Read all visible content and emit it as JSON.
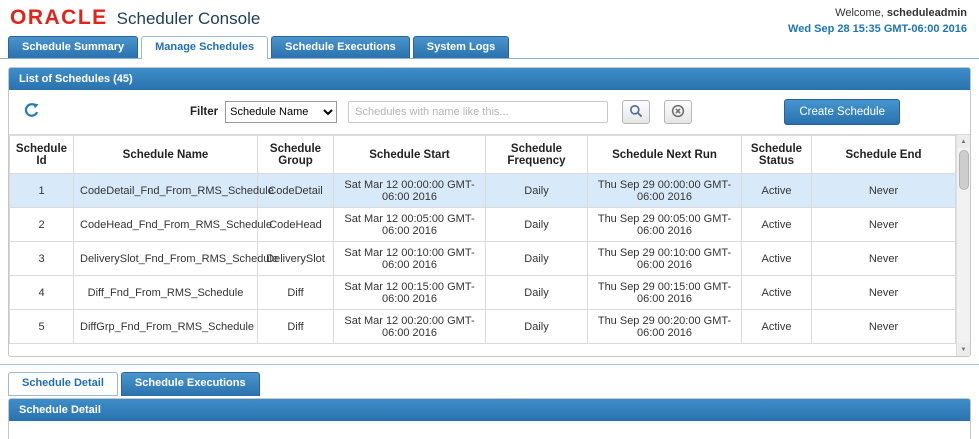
{
  "header": {
    "logo": "ORACLE",
    "title": "Scheduler Console",
    "welcome_prefix": "Welcome, ",
    "username": "scheduleadmin",
    "datetime": "Wed Sep 28 15:35 GMT-06:00 2016"
  },
  "tabs": [
    {
      "label": "Schedule Summary",
      "active": false
    },
    {
      "label": "Manage Schedules",
      "active": true
    },
    {
      "label": "Schedule Executions",
      "active": false
    },
    {
      "label": "System Logs",
      "active": false
    }
  ],
  "list_panel": {
    "title": "List of Schedules (45)",
    "filter_label": "Filter",
    "filter_dropdown_value": "Schedule Name",
    "search_placeholder": "Schedules with name like this...",
    "create_button": "Create Schedule"
  },
  "table": {
    "columns": [
      "Schedule Id",
      "Schedule Name",
      "Schedule Group",
      "Schedule Start",
      "Schedule Frequency",
      "Schedule Next Run",
      "Schedule Status",
      "Schedule End"
    ],
    "selected_row_index": 0,
    "rows": [
      [
        "1",
        "CodeDetail_Fnd_From_RMS_Schedule",
        "CodeDetail",
        "Sat Mar 12 00:00:00 GMT-06:00 2016",
        "Daily",
        "Thu Sep 29 00:00:00 GMT-06:00 2016",
        "Active",
        "Never"
      ],
      [
        "2",
        "CodeHead_Fnd_From_RMS_Schedule",
        "CodeHead",
        "Sat Mar 12 00:05:00 GMT-06:00 2016",
        "Daily",
        "Thu Sep 29 00:05:00 GMT-06:00 2016",
        "Active",
        "Never"
      ],
      [
        "3",
        "DeliverySlot_Fnd_From_RMS_Schedule",
        "DeliverySlot",
        "Sat Mar 12 00:10:00 GMT-06:00 2016",
        "Daily",
        "Thu Sep 29 00:10:00 GMT-06:00 2016",
        "Active",
        "Never"
      ],
      [
        "4",
        "Diff_Fnd_From_RMS_Schedule",
        "Diff",
        "Sat Mar 12 00:15:00 GMT-06:00 2016",
        "Daily",
        "Thu Sep 29 00:15:00 GMT-06:00 2016",
        "Active",
        "Never"
      ],
      [
        "5",
        "DiffGrp_Fnd_From_RMS_Schedule",
        "Diff",
        "Sat Mar 12 00:20:00 GMT-06:00 2016",
        "Daily",
        "Thu Sep 29 00:20:00 GMT-06:00 2016",
        "Active",
        "Never"
      ]
    ]
  },
  "detail_tabs": [
    {
      "label": "Schedule Detail",
      "active": true
    },
    {
      "label": "Schedule Executions",
      "active": false
    }
  ],
  "detail_panel": {
    "title": "Schedule Detail"
  },
  "icons": {
    "scroll_up": "▲",
    "scroll_down": "▼"
  },
  "colors": {
    "brand_red": "#e2231a",
    "accent_blue": "#2a72ae",
    "selected_row": "#d8eaf9",
    "datetime_blue": "#1b75bb"
  }
}
